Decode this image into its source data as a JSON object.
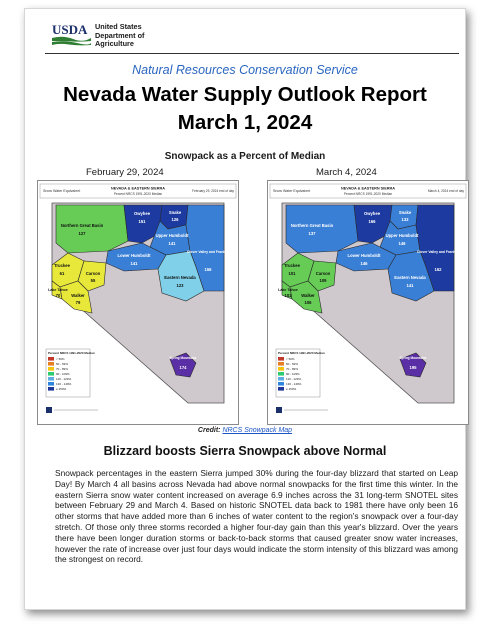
{
  "header": {
    "logo_text": "USDA",
    "department_lines": [
      "United States",
      "Department of",
      "Agriculture"
    ]
  },
  "agency": "Natural Resources Conservation Service",
  "title_line1": "Nevada Water Supply Outlook Report",
  "title_line2": "March 1, 2024",
  "map_heading": "Snowpack as a Percent of Median",
  "maps": [
    {
      "date_label": "February 29, 2024",
      "header_left": "Snow Water Equivalent",
      "header_mid1": "NEVADA & EASTERN SIERRA",
      "header_mid2": "Percent NRCS 1991-2020 Median",
      "header_right": "February 29, 2024 end of day",
      "basins": [
        {
          "name": "Northern Great Basin",
          "value": "127"
        },
        {
          "name": "Owyhee",
          "value": "151"
        },
        {
          "name": "Snake",
          "value": "126"
        },
        {
          "name": "Upper Humboldt",
          "value": "141"
        },
        {
          "name": "Lower Humboldt",
          "value": "141"
        },
        {
          "name": "Clover Valley and Franklin",
          "value": "156"
        },
        {
          "name": "Truckee",
          "value": "61"
        },
        {
          "name": "Carson",
          "value": "55"
        },
        {
          "name": "Lake Tahoe",
          "value": "70"
        },
        {
          "name": "Walker",
          "value": "79"
        },
        {
          "name": "Eastern Nevada",
          "value": "123"
        },
        {
          "name": "Spring Mountains",
          "value": "174"
        }
      ]
    },
    {
      "date_label": "March 4, 2024",
      "header_left": "Snow Water Equivalent",
      "header_mid1": "NEVADA & EASTERN SIERRA",
      "header_mid2": "Percent NRCS 1991-2020 Median",
      "header_right": "March 4, 2024 end of day",
      "basins": [
        {
          "name": "Northern Great Basin",
          "value": "137"
        },
        {
          "name": "Owyhee",
          "value": "166"
        },
        {
          "name": "Snake",
          "value": "133"
        },
        {
          "name": "Upper Humboldt",
          "value": "146"
        },
        {
          "name": "Lower Humboldt",
          "value": "146"
        },
        {
          "name": "Clover Valley and Franklin",
          "value": "162"
        },
        {
          "name": "Truckee",
          "value": "101"
        },
        {
          "name": "Carson",
          "value": "109"
        },
        {
          "name": "Lake Tahoe",
          "value": "101"
        },
        {
          "name": "Walker",
          "value": "106"
        },
        {
          "name": "Eastern Nevada",
          "value": "141"
        },
        {
          "name": "Spring Mountains",
          "value": "195"
        }
      ]
    }
  ],
  "legend": {
    "title": "Percent NRCS 1991-2020 Median",
    "items": [
      "< 50%",
      "50 - 69%",
      "70 - 89%",
      "90 - 109%",
      "110 - 129%",
      "130 - 149%",
      "≥ 150%"
    ],
    "colors": [
      "#c0392b",
      "#e67e22",
      "#f1c40f",
      "#2ecc71",
      "#5dade2",
      "#2e86de",
      "#1e3799"
    ]
  },
  "colors": {
    "agency_blue": "#2a66c0",
    "yellow": "#e8e83a",
    "green": "#66cc55",
    "light_blue": "#7fd0e8",
    "mid_blue": "#3a7fd6",
    "dark_blue": "#1c3aa0",
    "purple": "#5a2fa6",
    "terrain": "#cfc8cc"
  },
  "credit_label": "Credit:",
  "credit_link": "NRCS Snowpack Map",
  "article_heading": "Blizzard boosts Sierra Snowpack above Normal",
  "article_body": "Snowpack percentages in the eastern Sierra jumped 30% during the four-day blizzard that started on Leap Day! By March 4 all basins across Nevada had above normal snowpacks for the first time this winter. In the eastern Sierra snow water content increased on average 6.9 inches across the 31 long-term SNOTEL sites between February 29 and March 4. Based on historic SNOTEL data back to 1981 there have only been 16 other storms that have added more than 6 inches of water content to the region's snowpack over a four-day stretch. Of those only three storms recorded a higher four-day gain than this year's blizzard. Over the years there have been longer duration storms or back-to-back storms that caused greater snow water increases, however the rate of increase over just four days would indicate the storm intensity of this blizzard was among the strongest on record."
}
